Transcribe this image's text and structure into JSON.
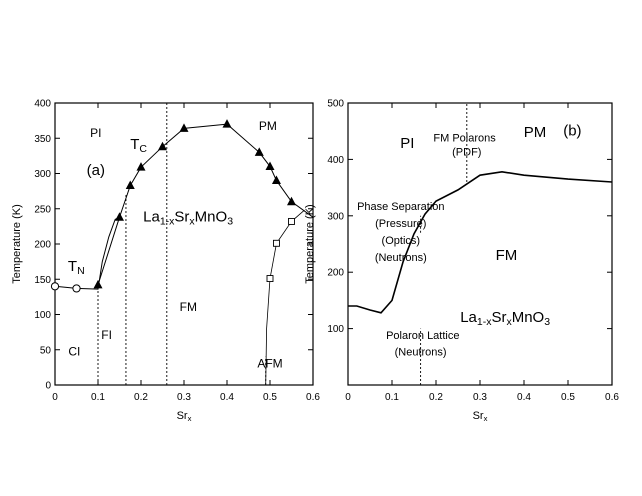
{
  "chart_data": [
    {
      "id": "a",
      "type": "scatter",
      "panel_label": "(a)",
      "xlabel": "Sr",
      "xlabel_sub": "x",
      "ylabel": "Temperature (K)",
      "xlim": [
        0,
        0.6
      ],
      "ylim": [
        0,
        400
      ],
      "xticks": [
        0,
        0.1,
        0.2,
        0.3,
        0.4,
        0.5,
        0.6
      ],
      "xtick_labels": [
        "0",
        "0.1",
        "0.2",
        "0.3",
        "0.4",
        "0.5",
        "0.6"
      ],
      "yticks": [
        0,
        50,
        100,
        150,
        200,
        250,
        300,
        350,
        400
      ],
      "ytick_labels": [
        "0",
        "50",
        "100",
        "150",
        "200",
        "250",
        "300",
        "350",
        "400"
      ],
      "series": [
        {
          "marker": "triangle",
          "values": [
            [
              0.1,
              142
            ],
            [
              0.15,
              238
            ],
            [
              0.175,
              283
            ],
            [
              0.2,
              309
            ],
            [
              0.25,
              338
            ],
            [
              0.3,
              364
            ],
            [
              0.4,
              370
            ],
            [
              0.475,
              330
            ],
            [
              0.5,
              310
            ],
            [
              0.515,
              290
            ],
            [
              0.55,
              260
            ]
          ]
        },
        {
          "marker": "open-circle",
          "values": [
            [
              0,
              140
            ],
            [
              0.05,
              137
            ]
          ]
        },
        {
          "marker": "open-square",
          "values": [
            [
              0.5,
              151
            ],
            [
              0.515,
              201
            ],
            [
              0.55,
              232
            ]
          ]
        }
      ],
      "curves": {
        "tc_line": [
          [
            0.1,
            142
          ],
          [
            0.15,
            238
          ],
          [
            0.175,
            283
          ],
          [
            0.2,
            309
          ],
          [
            0.25,
            338
          ],
          [
            0.3,
            364
          ],
          [
            0.4,
            370
          ],
          [
            0.475,
            330
          ],
          [
            0.5,
            310
          ],
          [
            0.515,
            290
          ],
          [
            0.55,
            260
          ],
          [
            0.6,
            238
          ]
        ],
        "tn_line": [
          [
            0,
            140
          ],
          [
            0.05,
            137
          ],
          [
            0.1,
            136
          ],
          [
            0.1,
            142
          ]
        ],
        "fi_boundary": [
          [
            0.1,
            136
          ],
          [
            0.11,
            175
          ],
          [
            0.125,
            210
          ],
          [
            0.14,
            235
          ],
          [
            0.15,
            238
          ]
        ],
        "afm_boundary": [
          [
            0.49,
            0
          ],
          [
            0.492,
            80
          ],
          [
            0.5,
            151
          ],
          [
            0.515,
            201
          ],
          [
            0.55,
            232
          ],
          [
            0.58,
            248
          ]
        ]
      },
      "vertical_lines": [
        {
          "x": 0.1,
          "y_top": 142
        },
        {
          "x": 0.165,
          "y_top": 270
        },
        {
          "x": 0.26,
          "y_top": 400
        },
        {
          "x": 0.49,
          "y_top": 40
        }
      ],
      "annotations": [
        {
          "text": "PI",
          "x": 0.095,
          "y": 352
        },
        {
          "text": "PM",
          "x": 0.495,
          "y": 362
        },
        {
          "text": "T",
          "sub": "C",
          "x": 0.175,
          "y": 335
        },
        {
          "text": "T",
          "sub": "N",
          "x": 0.03,
          "y": 162
        },
        {
          "text": "CI",
          "x": 0.045,
          "y": 42
        },
        {
          "text": "FI",
          "x": 0.12,
          "y": 65
        },
        {
          "text": "FM",
          "x": 0.31,
          "y": 105
        },
        {
          "text": "AFM",
          "x": 0.5,
          "y": 25
        },
        {
          "text": "La",
          "formula": [
            [
              "La",
              ""
            ],
            [
              "1-x",
              "sub"
            ],
            [
              "Sr",
              ""
            ],
            [
              "x",
              "sub"
            ],
            [
              "MnO",
              ""
            ],
            [
              "3",
              "sub"
            ]
          ],
          "x": 0.205,
          "y": 232
        }
      ]
    },
    {
      "id": "b",
      "type": "line",
      "panel_label": "(b)",
      "xlabel": "Sr",
      "xlabel_sub": "x",
      "ylabel": "Temperature (K)",
      "xlim": [
        0,
        0.6
      ],
      "ylim": [
        0,
        500
      ],
      "xticks": [
        0,
        0.1,
        0.2,
        0.3,
        0.4,
        0.5,
        0.6
      ],
      "xtick_labels": [
        "0",
        "0.1",
        "0.2",
        "0.3",
        "0.4",
        "0.5",
        "0.6"
      ],
      "yticks": [
        100,
        200,
        300,
        400,
        500
      ],
      "ytick_labels": [
        "100",
        "200",
        "300",
        "400",
        "500"
      ],
      "curve": [
        [
          0,
          140
        ],
        [
          0.02,
          140
        ],
        [
          0.05,
          133
        ],
        [
          0.075,
          128
        ],
        [
          0.1,
          150
        ],
        [
          0.125,
          218
        ],
        [
          0.15,
          268
        ],
        [
          0.175,
          303
        ],
        [
          0.2,
          326
        ],
        [
          0.25,
          346
        ],
        [
          0.3,
          372
        ],
        [
          0.35,
          378
        ],
        [
          0.4,
          372
        ],
        [
          0.5,
          365
        ],
        [
          0.6,
          360
        ]
      ],
      "vertical_lines": [
        {
          "x": 0.165,
          "y_bottom": 0,
          "y_top": 100
        },
        {
          "x": 0.165,
          "y_bottom": 270,
          "y_top": 300
        },
        {
          "x": 0.27,
          "y_bottom": 360,
          "y_top": 500
        }
      ],
      "annotations": [
        {
          "text": "PI",
          "x": 0.135,
          "y": 420,
          "size": "big"
        },
        {
          "text": "PM",
          "x": 0.425,
          "y": 440,
          "size": "big"
        },
        {
          "text": "(b)",
          "x": 0.51,
          "y": 442,
          "size": "big"
        },
        {
          "text": "FM Polarons",
          "x": 0.265,
          "y": 432,
          "size": "small"
        },
        {
          "text": "(PDF)",
          "x": 0.27,
          "y": 407,
          "size": "small"
        },
        {
          "text": "Phase Separation",
          "x": 0.12,
          "y": 310,
          "size": "small"
        },
        {
          "text": "(Pressure)",
          "x": 0.12,
          "y": 280,
          "size": "small"
        },
        {
          "text": "(Optics)",
          "x": 0.12,
          "y": 250,
          "size": "small"
        },
        {
          "text": "(Neutrons)",
          "x": 0.12,
          "y": 220,
          "size": "small"
        },
        {
          "text": "FM",
          "x": 0.36,
          "y": 222,
          "size": "big"
        },
        {
          "text": "Polaron Lattice",
          "x": 0.17,
          "y": 82,
          "size": "small"
        },
        {
          "text": "(Neutrons)",
          "x": 0.165,
          "y": 52,
          "size": "small"
        },
        {
          "formula": [
            [
              "La",
              ""
            ],
            [
              "1-x",
              "sub"
            ],
            [
              "Sr",
              ""
            ],
            [
              "x",
              "sub"
            ],
            [
              "MnO",
              ""
            ],
            [
              "3",
              "sub"
            ]
          ],
          "x": 0.255,
          "y": 112,
          "size": "big"
        }
      ]
    }
  ]
}
